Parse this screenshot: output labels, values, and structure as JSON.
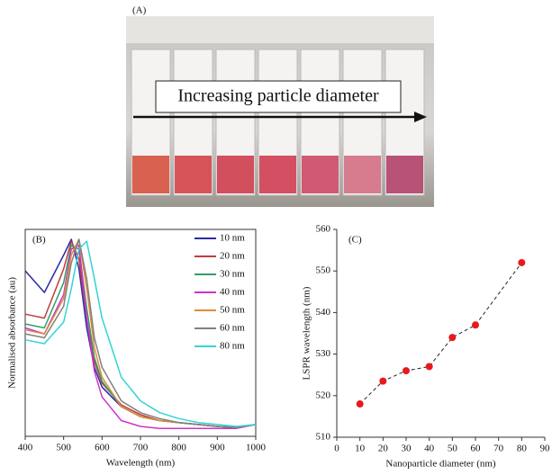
{
  "photo": {
    "label": "(A)",
    "caption": "Increasing particle diameter"
  },
  "chart_data": [
    {
      "type": "line",
      "label": "(B)",
      "xlabel": "Wavelength (nm)",
      "ylabel": "Normalised absorbance (au)",
      "x": [
        400,
        450,
        500,
        520,
        540,
        560,
        580,
        600,
        650,
        700,
        750,
        800,
        850,
        900,
        950,
        1000
      ],
      "xlim": [
        400,
        1000
      ],
      "xticks": [
        400,
        500,
        600,
        700,
        800,
        900,
        1000
      ],
      "ylim": [
        0,
        1.05
      ],
      "legend": "upper right",
      "series": [
        {
          "name": "10 nm",
          "color": "#2b2ba3",
          "values": [
            0.84,
            0.73,
            0.92,
            1.0,
            0.85,
            0.55,
            0.35,
            0.25,
            0.15,
            0.1,
            0.08,
            0.07,
            0.06,
            0.05,
            0.045,
            0.06
          ]
        },
        {
          "name": "20 nm",
          "color": "#c23b3d",
          "values": [
            0.62,
            0.6,
            0.85,
            0.99,
            0.9,
            0.6,
            0.38,
            0.27,
            0.16,
            0.11,
            0.08,
            0.07,
            0.06,
            0.05,
            0.045,
            0.06
          ]
        },
        {
          "name": "30 nm",
          "color": "#2f9e6b",
          "values": [
            0.57,
            0.55,
            0.78,
            0.97,
            0.95,
            0.65,
            0.4,
            0.28,
            0.15,
            0.1,
            0.08,
            0.07,
            0.06,
            0.05,
            0.045,
            0.06
          ]
        },
        {
          "name": "40 nm",
          "color": "#cc33cc",
          "values": [
            0.55,
            0.52,
            0.72,
            0.95,
            0.97,
            0.6,
            0.33,
            0.2,
            0.08,
            0.05,
            0.04,
            0.04,
            0.04,
            0.04,
            0.04,
            0.06
          ]
        },
        {
          "name": "50 nm",
          "color": "#e08a3c",
          "values": [
            0.54,
            0.52,
            0.7,
            0.92,
            1.0,
            0.75,
            0.45,
            0.3,
            0.15,
            0.1,
            0.08,
            0.07,
            0.06,
            0.05,
            0.045,
            0.06
          ]
        },
        {
          "name": "60 nm",
          "color": "#808080",
          "values": [
            0.52,
            0.5,
            0.66,
            0.88,
            1.0,
            0.8,
            0.5,
            0.35,
            0.18,
            0.12,
            0.09,
            0.07,
            0.06,
            0.05,
            0.045,
            0.06
          ]
        },
        {
          "name": "80 nm",
          "color": "#33d3d6",
          "values": [
            0.49,
            0.47,
            0.58,
            0.75,
            0.95,
            0.99,
            0.8,
            0.6,
            0.3,
            0.18,
            0.12,
            0.09,
            0.07,
            0.06,
            0.05,
            0.06
          ]
        }
      ]
    },
    {
      "type": "scatter",
      "label": "(C)",
      "xlabel": "Nanoparticle diameter (nm)",
      "ylabel": "LSPR wavelength (nm)",
      "x": [
        10,
        20,
        30,
        40,
        50,
        60,
        80
      ],
      "values": [
        518,
        523.5,
        526,
        527,
        534,
        537,
        552
      ],
      "color": "#e8191c",
      "line_color": "#222222",
      "line_style": "dashed",
      "xlim": [
        0,
        90
      ],
      "xticks": [
        0,
        10,
        20,
        30,
        40,
        50,
        60,
        70,
        80,
        90
      ],
      "ylim": [
        510,
        560
      ],
      "yticks": [
        510,
        520,
        530,
        540,
        550,
        560
      ]
    }
  ]
}
